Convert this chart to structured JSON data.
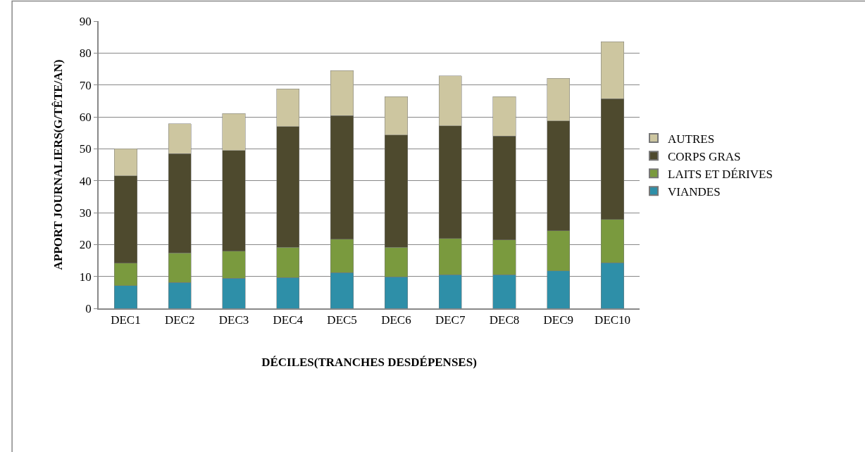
{
  "chart_data": {
    "type": "bar",
    "stacked": true,
    "xlabel": "DÉCILES(TRANCHES DESDÉPENSES)",
    "ylabel": "APPORT JOURNALIERS(G/TÊTE/AN)",
    "categories": [
      "DEC1",
      "DEC2",
      "DEC3",
      "DEC4",
      "DEC5",
      "DEC6",
      "DEC7",
      "DEC8",
      "DEC9",
      "DEC10"
    ],
    "series": [
      {
        "name": "VIANDES",
        "color": "#2e8fa8",
        "values": [
          7.1,
          8.1,
          9.4,
          9.7,
          11.2,
          9.9,
          10.5,
          10.5,
          11.8,
          14.3
        ]
      },
      {
        "name": "LAITS ET DÉRIVES",
        "color": "#7a9a3e",
        "values": [
          7.1,
          9.3,
          8.5,
          9.4,
          10.5,
          9.2,
          11.4,
          11.0,
          12.5,
          13.6
        ]
      },
      {
        "name": "CORPS GRAS",
        "color": "#4e4a2e",
        "values": [
          27.3,
          31.1,
          31.6,
          37.9,
          38.7,
          35.2,
          35.3,
          32.5,
          34.4,
          37.8
        ]
      },
      {
        "name": "AUTRES",
        "color": "#cdc6a0",
        "values": [
          8.5,
          9.4,
          11.5,
          11.8,
          14.1,
          12.0,
          15.6,
          12.3,
          13.4,
          17.9
        ]
      }
    ],
    "ylim": [
      0,
      90
    ],
    "yticks": [
      0,
      10,
      20,
      30,
      40,
      50,
      60,
      70,
      80,
      90
    ],
    "grid": "y",
    "legend": "right"
  }
}
